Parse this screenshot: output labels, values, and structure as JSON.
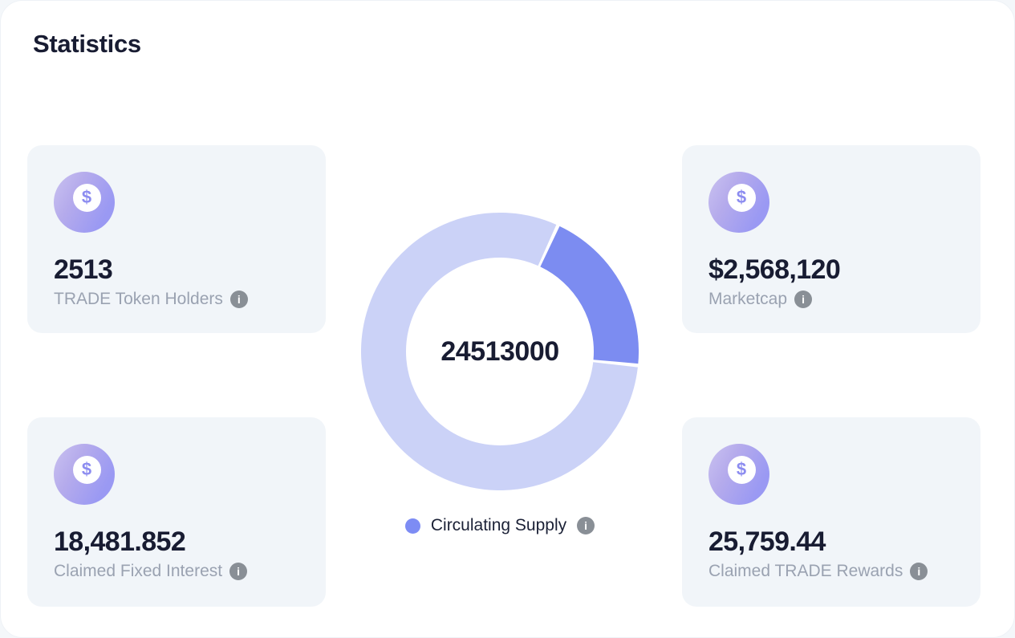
{
  "page": {
    "title": "Statistics"
  },
  "cards": [
    {
      "value": "2513",
      "label": "TRADE Token Holders"
    },
    {
      "value": "$2,568,120",
      "label": "Marketcap"
    },
    {
      "value": "18,481.852",
      "label": "Claimed Fixed Interest"
    },
    {
      "value": "25,759.44",
      "label": "Claimed TRADE Rewards"
    }
  ],
  "icons": {
    "dollar_glyph": "$",
    "info_glyph": "i"
  },
  "colors": {
    "card_background": "#f1f5f9",
    "value_text": "#181c32",
    "label_text": "#9aa2b1",
    "info_icon_background": "#898f96",
    "accent_dark": "#7c8cf1",
    "accent_light": "#cbd2f7"
  },
  "chart_data": {
    "type": "pie",
    "variant": "donut",
    "center_label": "24513000",
    "segments": [
      {
        "label": "Circulating Supply",
        "value": 24513000,
        "fraction": 0.196,
        "color": "#7c8cf1",
        "start_deg": 25.5,
        "end_deg": 95
      },
      {
        "label": "",
        "fraction": 0.804,
        "color": "#cbd2f7",
        "start_deg": 96.5,
        "end_deg": 384
      }
    ],
    "legend": [
      {
        "label": "Circulating Supply",
        "color": "#7d8cf4"
      }
    ],
    "legend_position": "bottom"
  }
}
